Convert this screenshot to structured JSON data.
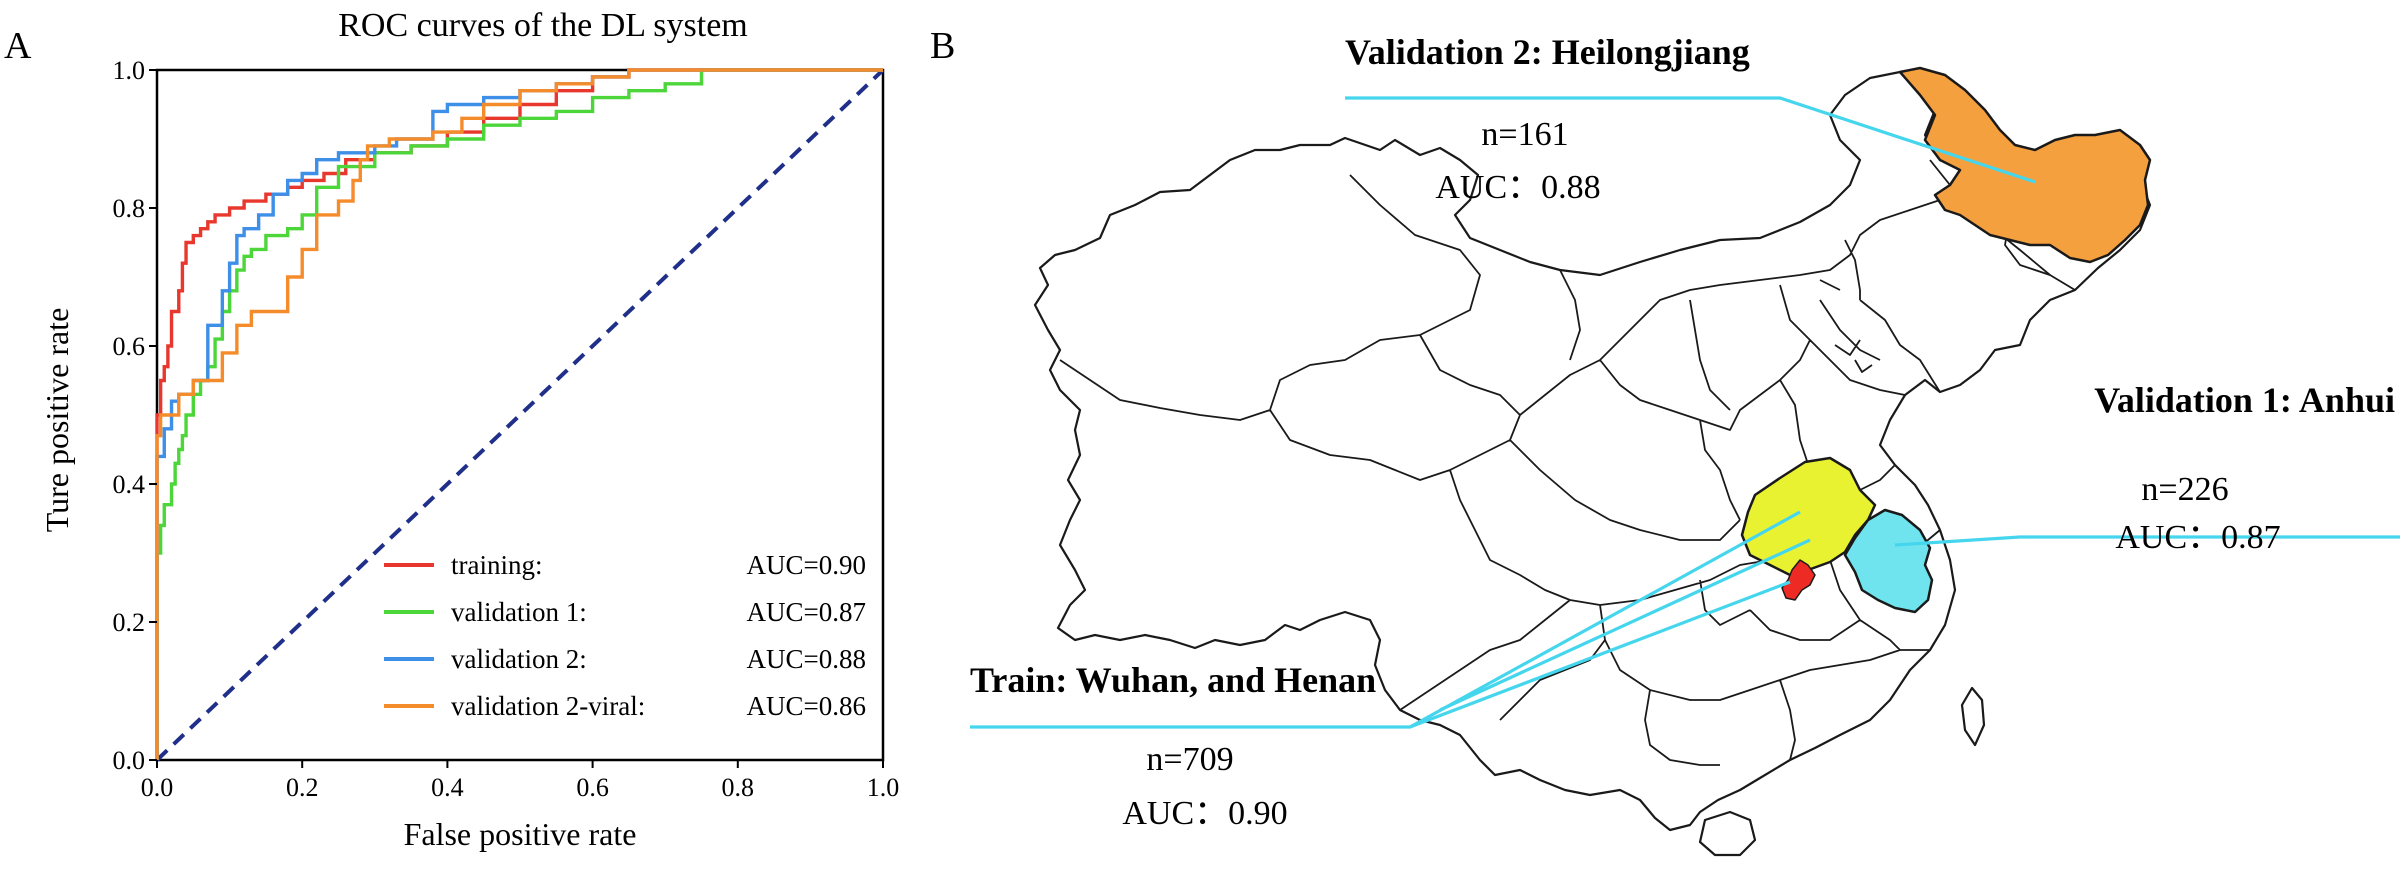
{
  "panel_labels": {
    "a": "A",
    "b": "B"
  },
  "chart_data": {
    "type": "line",
    "title": "ROC curves of the DL system",
    "xlabel": "False positive rate",
    "ylabel": "Ture positive rate",
    "xlim": [
      0,
      1
    ],
    "ylim": [
      0,
      1
    ],
    "xticks": [
      "0.0",
      "0.2",
      "0.4",
      "0.6",
      "0.8",
      "1.0"
    ],
    "yticks": [
      "0.0",
      "0.2",
      "0.4",
      "0.6",
      "0.8",
      "1.0"
    ],
    "grid": false,
    "legend_position": "lower-right",
    "series": [
      {
        "name": "training:",
        "auc": "AUC=0.90",
        "color": "#e8382e",
        "x": [
          0,
          0,
          0.005,
          0.01,
          0.015,
          0.02,
          0.03,
          0.035,
          0.04,
          0.05,
          0.06,
          0.07,
          0.08,
          0.1,
          0.12,
          0.15,
          0.18,
          0.2,
          0.23,
          0.26,
          0.3,
          0.35,
          0.4,
          0.45,
          0.5,
          0.55,
          0.6,
          0.65,
          0.7,
          0.75,
          0.8,
          1.0
        ],
        "y": [
          0,
          0.44,
          0.5,
          0.55,
          0.57,
          0.6,
          0.65,
          0.68,
          0.72,
          0.75,
          0.76,
          0.77,
          0.78,
          0.79,
          0.8,
          0.81,
          0.82,
          0.83,
          0.84,
          0.85,
          0.87,
          0.88,
          0.89,
          0.91,
          0.93,
          0.95,
          0.97,
          0.99,
          1.0,
          1.0,
          1.0,
          1.0
        ]
      },
      {
        "name": "validation 1:",
        "auc": "AUC=0.87",
        "color": "#4cd63a",
        "x": [
          0,
          0,
          0.005,
          0.01,
          0.02,
          0.025,
          0.03,
          0.035,
          0.04,
          0.05,
          0.06,
          0.07,
          0.08,
          0.09,
          0.1,
          0.11,
          0.12,
          0.13,
          0.15,
          0.18,
          0.2,
          0.22,
          0.25,
          0.28,
          0.3,
          0.35,
          0.4,
          0.45,
          0.5,
          0.55,
          0.6,
          0.65,
          0.7,
          0.75,
          0.8,
          1.0
        ],
        "y": [
          0,
          0.26,
          0.3,
          0.34,
          0.37,
          0.4,
          0.43,
          0.45,
          0.47,
          0.5,
          0.53,
          0.55,
          0.57,
          0.61,
          0.65,
          0.68,
          0.71,
          0.73,
          0.74,
          0.76,
          0.77,
          0.79,
          0.83,
          0.86,
          0.86,
          0.88,
          0.89,
          0.9,
          0.92,
          0.93,
          0.94,
          0.96,
          0.97,
          0.98,
          1.0,
          1.0
        ]
      },
      {
        "name": "validation 2:",
        "auc": "AUC=0.88",
        "color": "#3d8fe8",
        "x": [
          0,
          0,
          0.01,
          0.02,
          0.03,
          0.05,
          0.07,
          0.09,
          0.1,
          0.11,
          0.12,
          0.14,
          0.16,
          0.18,
          0.2,
          0.22,
          0.25,
          0.27,
          0.3,
          0.33,
          0.36,
          0.38,
          0.4,
          0.45,
          0.5,
          0.55,
          0.6,
          0.65,
          0.7,
          0.72,
          0.8,
          1.0
        ],
        "y": [
          0,
          0.41,
          0.44,
          0.48,
          0.52,
          0.53,
          0.55,
          0.63,
          0.68,
          0.72,
          0.76,
          0.77,
          0.79,
          0.82,
          0.84,
          0.85,
          0.87,
          0.88,
          0.88,
          0.89,
          0.9,
          0.9,
          0.94,
          0.95,
          0.96,
          0.97,
          0.98,
          0.99,
          1.0,
          1.0,
          1.0,
          1.0
        ]
      },
      {
        "name": "validation 2-viral:",
        "auc": "AUC=0.86",
        "color": "#f58c2c",
        "x": [
          0,
          0,
          0.005,
          0.03,
          0.05,
          0.09,
          0.11,
          0.13,
          0.14,
          0.18,
          0.2,
          0.22,
          0.25,
          0.27,
          0.28,
          0.29,
          0.32,
          0.35,
          0.38,
          0.42,
          0.45,
          0.5,
          0.55,
          0.6,
          0.65,
          0.7,
          0.8,
          1.0
        ],
        "y": [
          0,
          0.44,
          0.47,
          0.5,
          0.53,
          0.55,
          0.59,
          0.63,
          0.65,
          0.65,
          0.7,
          0.74,
          0.79,
          0.81,
          0.84,
          0.87,
          0.89,
          0.9,
          0.9,
          0.91,
          0.93,
          0.95,
          0.97,
          0.98,
          0.99,
          1.0,
          1.0,
          1.0
        ]
      }
    ],
    "reference_line": {
      "x": [
        0,
        1
      ],
      "y": [
        0,
        1
      ],
      "color": "#1f2f8a",
      "style": "dashed"
    }
  },
  "map": {
    "callouts": {
      "heilongjiang": {
        "title": "Validation 2: Heilongjiang",
        "n": "n=161",
        "auc": "AUC：0.88",
        "color": "#f5a03f"
      },
      "anhui": {
        "title": "Validation 1: Anhui",
        "n": "n=226",
        "auc": "AUC：0.87",
        "color": "#6fe4ee"
      },
      "train": {
        "title": "Train: Wuhan, and Henan",
        "n": "n=709",
        "auc": "AUC：0.90"
      }
    },
    "region_colors": {
      "henan": "#e9f230",
      "wuhan": "#ee2a24",
      "line": "#45d6ee"
    }
  }
}
